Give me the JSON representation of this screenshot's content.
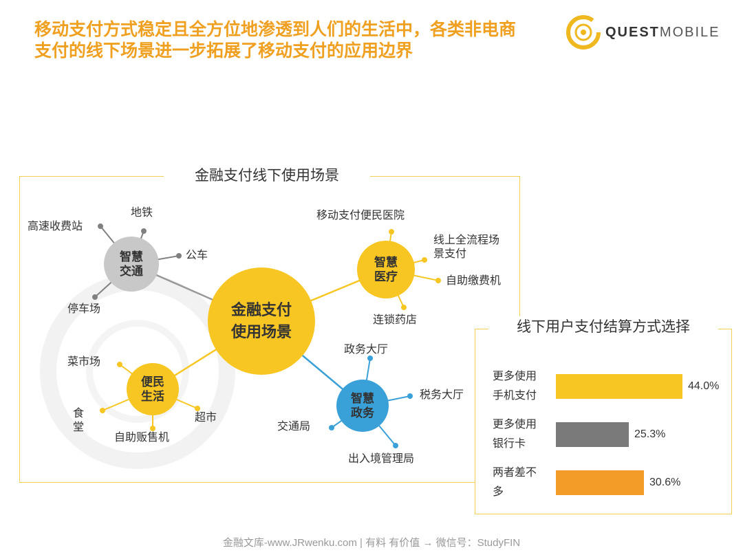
{
  "header": {
    "headline_line1": "移动支付方式稳定且全方位地渗透到人们的生活中，各类非电商",
    "headline_line2": "支付的线下场景进一步拓展了移动支付的应用边界",
    "logo_bold": "QUEST",
    "logo_light": "MOBILE",
    "logo_icon": "quest-ring-icon"
  },
  "mindmap": {
    "title": "金融支付线下使用场景",
    "center": {
      "label": "金融支付\n使用场景",
      "color": "#f7c623"
    },
    "nodes": [
      {
        "label": "智慧\n交通",
        "color": "#c8c8c8",
        "leaf_color": "#808080",
        "leaves": [
          "高速收费站",
          "地铁",
          "公车",
          "停车场"
        ]
      },
      {
        "label": "智慧\n医疗",
        "color": "#f7c623",
        "leaf_color": "#f7c623",
        "leaves": [
          "移动支付便民医院",
          "线上全流程场\n景支付",
          "自助缴费机",
          "连锁药店"
        ]
      },
      {
        "label": "便民\n生活",
        "color": "#f7c623",
        "leaf_color": "#f7c623",
        "leaves": [
          "菜市场",
          "食\n堂",
          "自助贩售机",
          "超市"
        ]
      },
      {
        "label": "智慧\n政务",
        "color": "#3aa0d8",
        "leaf_color": "#3aa0d8",
        "leaves": [
          "政务大厅",
          "税务大厅",
          "交通局",
          "出入境管理局"
        ]
      }
    ]
  },
  "chart_data": {
    "type": "bar",
    "orientation": "horizontal",
    "title": "线下用户支付结算方式选择",
    "categories": [
      "更多使用\n手机支付",
      "更多使用\n银行卡",
      "两者差不\n多"
    ],
    "values": [
      44.0,
      25.3,
      30.6
    ],
    "value_labels": [
      "44.0%",
      "25.3%",
      "30.6%"
    ],
    "colors": [
      "#f7c623",
      "#7a7a7a",
      "#f39c28"
    ]
  },
  "footer": {
    "text": "金融文库-www.JRwenku.com | 有料 有价值 → 微信号：StudyFIN"
  }
}
